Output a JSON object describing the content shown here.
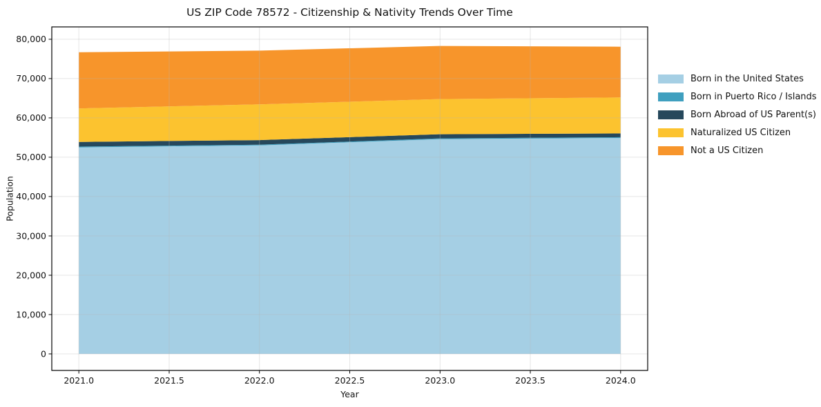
{
  "figure": {
    "background": "#ffffff",
    "spine_color": "#000000",
    "grid_color": "#b4b4b4",
    "grid_opacity": 0.35
  },
  "chart_data": {
    "type": "area",
    "stacked": true,
    "title": "US ZIP Code 78572 - Citizenship & Nativity Trends Over Time",
    "xlabel": "Year",
    "ylabel": "Population",
    "x": [
      2021,
      2022,
      2023,
      2024
    ],
    "series": [
      {
        "name": "Born in the United States",
        "color": "#a5cfe4",
        "values": [
          52500,
          53000,
          54600,
          54900
        ]
      },
      {
        "name": "Born in Puerto Rico / Islands",
        "color": "#3f9fbf",
        "values": [
          200,
          200,
          200,
          200
        ]
      },
      {
        "name": "Born Abroad of US Parent(s)",
        "color": "#26485c",
        "values": [
          1200,
          1150,
          1050,
          950
        ]
      },
      {
        "name": "Naturalized US Citizen",
        "color": "#fcc32f",
        "values": [
          8500,
          9100,
          8950,
          9150
        ]
      },
      {
        "name": "Not a US Citizen",
        "color": "#f7952b",
        "values": [
          14300,
          13650,
          13500,
          12900
        ]
      }
    ],
    "totals": [
      76700,
      77100,
      78300,
      78100
    ],
    "xlim": [
      2020.85,
      2024.15
    ],
    "ylim": [
      -4210,
      83140
    ],
    "x_ticks": {
      "values": [
        2021.0,
        2021.5,
        2022.0,
        2022.5,
        2023.0,
        2023.5,
        2024.0
      ],
      "labels": [
        "2021.0",
        "2021.5",
        "2022.0",
        "2022.5",
        "2023.0",
        "2023.5",
        "2024.0"
      ]
    },
    "y_ticks": {
      "values": [
        0,
        10000,
        20000,
        30000,
        40000,
        50000,
        60000,
        70000,
        80000
      ],
      "labels": [
        "0",
        "10,000",
        "20,000",
        "30,000",
        "40,000",
        "50,000",
        "60,000",
        "70,000",
        "80,000"
      ]
    },
    "grid": true,
    "legend_position": "right-outside"
  }
}
